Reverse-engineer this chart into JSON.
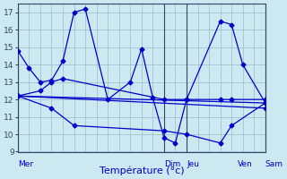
{
  "xlabel": "Température (°c)",
  "bg_color": "#cce8f0",
  "grid_color": "#99bbcc",
  "line_color": "#0000cc",
  "vline_color": "#334466",
  "ylim": [
    9,
    17.5
  ],
  "yticks": [
    9,
    10,
    11,
    12,
    13,
    14,
    15,
    16,
    17
  ],
  "day_labels": [
    "Mer",
    "Dim",
    "Jeu",
    "Ven",
    "Sam"
  ],
  "day_x": [
    0,
    13,
    15,
    19.5,
    22
  ],
  "vline_x": [
    0,
    13,
    15,
    22
  ],
  "series": [
    {
      "x": [
        0,
        1,
        2,
        3,
        4,
        5,
        6,
        8,
        10,
        11,
        12,
        13,
        14,
        15,
        18,
        19,
        20,
        22
      ],
      "y": [
        14.8,
        13.8,
        13.0,
        13.1,
        14.2,
        17.0,
        17.2,
        12.0,
        13.0,
        14.9,
        12.1,
        9.8,
        9.5,
        12.0,
        16.5,
        16.3,
        14.0,
        11.8
      ]
    },
    {
      "x": [
        0,
        2,
        3,
        4,
        13,
        15,
        18,
        19,
        22
      ],
      "y": [
        12.2,
        12.5,
        13.0,
        13.2,
        12.0,
        12.0,
        12.0,
        12.0,
        12.0
      ]
    },
    {
      "x": [
        0,
        3,
        5,
        13,
        15,
        18,
        19,
        22
      ],
      "y": [
        12.2,
        11.5,
        10.5,
        10.2,
        10.0,
        9.5,
        10.5,
        11.8
      ]
    },
    {
      "x": [
        0,
        22
      ],
      "y": [
        12.2,
        11.8
      ]
    },
    {
      "x": [
        0,
        22
      ],
      "y": [
        12.2,
        11.5
      ]
    }
  ],
  "xlim": [
    0,
    22
  ]
}
